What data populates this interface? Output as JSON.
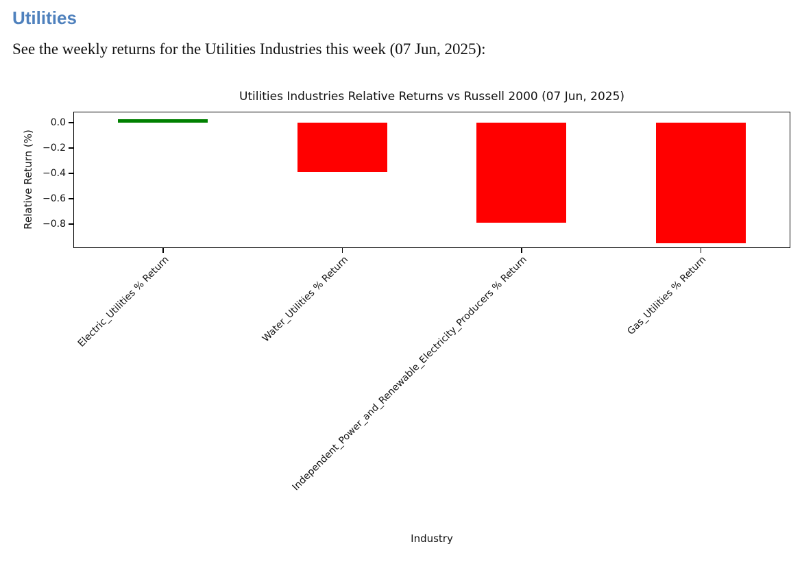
{
  "page": {
    "heading": "Utilities",
    "heading_color": "#4f81bd",
    "description": "See the weekly returns for the Utilities Industries this week (07 Jun, 2025):"
  },
  "chart_data": {
    "type": "bar",
    "title": "Utilities Industries Relative Returns vs Russell 2000 (07 Jun, 2025)",
    "xlabel": "Industry",
    "ylabel": "Relative Return (%)",
    "categories": [
      "Electric_Utilities % Return",
      "Water_Utilities % Return",
      "Independent_Power_and_Renewable_Electricity_Producers % Return",
      "Gas_Utilities % Return"
    ],
    "values": [
      0.03,
      -0.39,
      -0.79,
      -0.95
    ],
    "bar_colors": [
      "#008000",
      "#ff0000",
      "#ff0000",
      "#ff0000"
    ],
    "positive_color": "#008000",
    "negative_color": "#ff0000",
    "yticks": [
      0.0,
      -0.2,
      -0.4,
      -0.6,
      -0.8
    ],
    "ytick_labels": [
      "0.0",
      "−0.2",
      "−0.4",
      "−0.6",
      "−0.8"
    ],
    "ylim": [
      -0.99,
      0.087
    ],
    "bar_width_fraction": 0.5,
    "x_tick_rotation_deg": 45,
    "grid": false,
    "legend": "none"
  }
}
